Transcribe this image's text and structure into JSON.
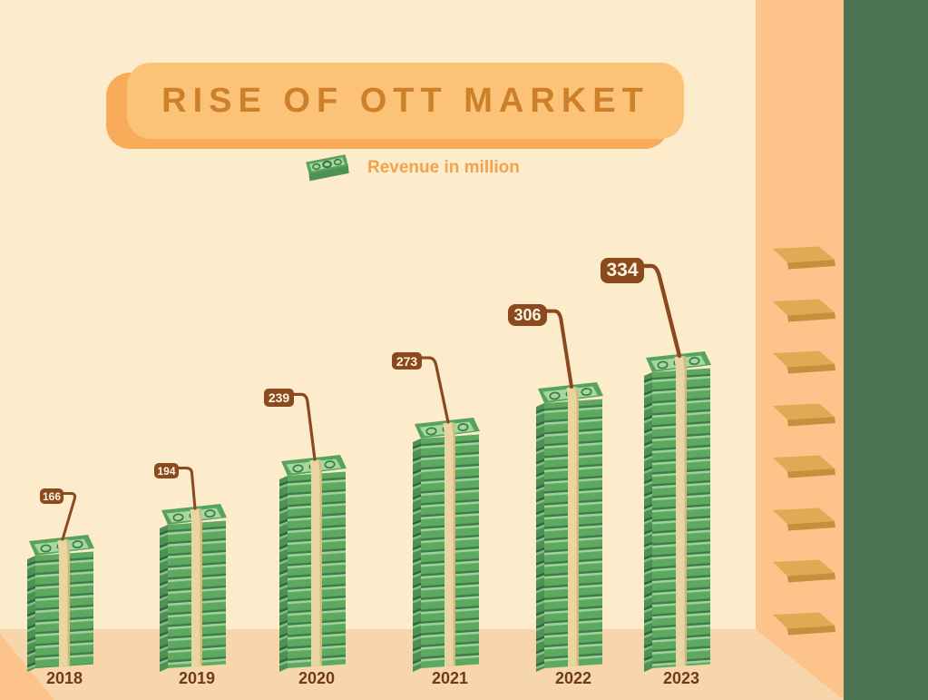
{
  "title": "RISE OF OTT MARKET",
  "legend": {
    "icon": "money-stack-icon",
    "label": "Revenue in million"
  },
  "chart_data": {
    "type": "bar",
    "title": "Rise of OTT Market",
    "categories": [
      "2018",
      "2019",
      "2020",
      "2021",
      "2022",
      "2023"
    ],
    "values": [
      166,
      194,
      239,
      273,
      306,
      334
    ],
    "series_label": "Revenue in million",
    "unit": "million",
    "legend_position": "top-center",
    "bar_style": "money-stack-pictograph",
    "value_labels": "callout-bubbles-above-bars",
    "grid": false
  },
  "colors": {
    "bg": "#fceccb",
    "floor": "#f8d6ac",
    "wall": "#fcc48a",
    "green_edge": "#4a7450",
    "banner": "#fcc278",
    "banner_shadow": "#f8ab58",
    "title": "#cd802a",
    "legend_text": "#f2a24b",
    "bubble": "#8a4a1e",
    "bubble_text": "#fdf4e0",
    "year": "#6f3a1b",
    "step_top": "#e2a955",
    "step_side": "#c78e3d",
    "bill_front": "#5ca95f",
    "bill_front_light": "#9fd29b",
    "bill_front_dark": "#3f7b49",
    "bill_side": "#4e9153",
    "bill_side_light": "#86bd85",
    "bill_side_dark": "#2f6640",
    "bill_top_face": "#57a35b",
    "bill_top_inner": "#a6d7a0",
    "bill_seal": "#3a7a45",
    "strap": "#e9d5a2",
    "strap_shade": "#d6b77e"
  }
}
